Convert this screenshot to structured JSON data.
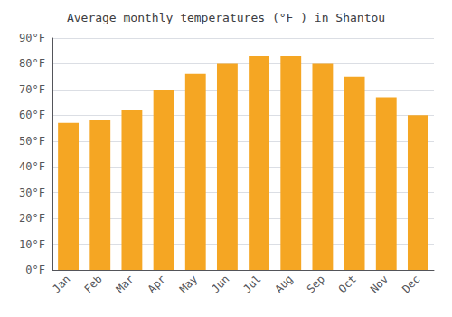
{
  "chart_data": {
    "type": "bar",
    "title": "Average monthly temperatures (°F ) in Shantou",
    "categories": [
      "Jan",
      "Feb",
      "Mar",
      "Apr",
      "May",
      "Jun",
      "Jul",
      "Aug",
      "Sep",
      "Oct",
      "Nov",
      "Dec"
    ],
    "values": [
      57,
      58,
      62,
      70,
      76,
      80,
      83,
      83,
      80,
      75,
      67,
      60
    ],
    "color": "#F5A623",
    "ylim": [
      0,
      90
    ],
    "yticks": [
      {
        "value": 0,
        "label": "0°F"
      },
      {
        "value": 10,
        "label": "10°F"
      },
      {
        "value": 20,
        "label": "20°F"
      },
      {
        "value": 30,
        "label": "30°F"
      },
      {
        "value": 40,
        "label": "40°F"
      },
      {
        "value": 50,
        "label": "50°F"
      },
      {
        "value": 60,
        "label": "60°F"
      },
      {
        "value": 70,
        "label": "70°F"
      },
      {
        "value": 80,
        "label": "80°F"
      },
      {
        "value": 90,
        "label": "90°F"
      }
    ],
    "grid": true
  }
}
